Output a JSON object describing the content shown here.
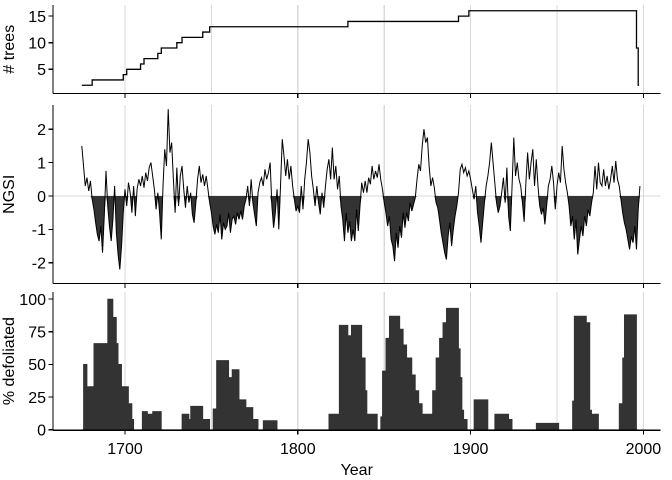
{
  "figure": {
    "description": "Three stacked time-series panels sharing a Year axis: tree sample depth, NGSI index with negative values filled dark, and percent defoliated.",
    "x_axis": {
      "label": "Year",
      "tick_labels": [
        1700,
        1800,
        1900,
        2000
      ],
      "gridline_years": [
        1700,
        1750,
        1800,
        1850,
        1900,
        1950,
        2000
      ],
      "domain": [
        1658,
        2010
      ]
    },
    "colors": {
      "line": "#000000",
      "fill": "#333333",
      "grid": "#d9d9d9",
      "axis": "#000000",
      "background": "#ffffff"
    }
  },
  "chart_data": [
    {
      "id": "trees",
      "type": "line",
      "subtype": "step-after",
      "ylabel": "# trees",
      "yticks": [
        5,
        10,
        15
      ],
      "ydomain": [
        0.5,
        17.1
      ],
      "steps": [
        [
          1675,
          2
        ],
        [
          1681,
          3
        ],
        [
          1699,
          4
        ],
        [
          1701,
          5
        ],
        [
          1709,
          6
        ],
        [
          1711,
          7
        ],
        [
          1719,
          8
        ],
        [
          1721,
          9
        ],
        [
          1730,
          10
        ],
        [
          1733,
          11
        ],
        [
          1745,
          12
        ],
        [
          1749,
          13
        ],
        [
          1829,
          14
        ],
        [
          1893,
          15
        ],
        [
          1899,
          16
        ],
        [
          1996,
          9
        ],
        [
          1997,
          2
        ]
      ],
      "end_year": 1997.5
    },
    {
      "id": "ngsi",
      "type": "line",
      "ylabel": "NGSI",
      "yticks": [
        -2,
        -1,
        0,
        1,
        2
      ],
      "ydomain": [
        -2.6,
        2.72
      ],
      "fill_below_zero": true,
      "zero_gridline": true,
      "start_year": 1675,
      "values": [
        1.5,
        0.9,
        0.3,
        0.55,
        0.15,
        0.45,
        -0.1,
        -0.4,
        -0.8,
        -1.15,
        -1.35,
        -0.9,
        -1.7,
        -0.6,
        0.75,
        -0.3,
        -0.9,
        -1.35,
        -0.7,
        0.3,
        -1.1,
        -1.75,
        -2.2,
        -1.5,
        -0.5,
        0.2,
        -0.3,
        0.4,
        0.1,
        -0.5,
        0.3,
        -0.6,
        0.2,
        0.5,
        0.3,
        0.6,
        0.25,
        0.7,
        0.45,
        0.85,
        1.0,
        0.6,
        0.2,
        -0.4,
        0.1,
        -0.5,
        -1.3,
        0.3,
        1.4,
        0.9,
        2.6,
        1.3,
        1.6,
        0.5,
        -0.5,
        0.85,
        -0.3,
        0.6,
        0.9,
        0.2,
        -0.35,
        0.3,
        -0.2,
        0.1,
        -0.55,
        -0.8,
        -0.2,
        0.5,
        0.9,
        0.4,
        0.65,
        0.3,
        0.6,
        0.2,
        -0.2,
        -0.5,
        -0.9,
        -1.15,
        -0.85,
        -1.1,
        -0.55,
        -1.3,
        -0.8,
        -1.0,
        -0.9,
        -0.5,
        -1.1,
        -0.7,
        -0.6,
        -0.85,
        -0.5,
        -0.7,
        -0.45,
        -0.7,
        -0.3,
        -0.1,
        0.3,
        -0.3,
        0.5,
        -0.2,
        -0.55,
        -0.9,
        0.1,
        0.4,
        0.55,
        0.3,
        0.8,
        0.5,
        0.7,
        1.0,
        -0.3,
        -0.95,
        -0.5,
        0.2,
        -1.0,
        0.3,
        1.7,
        1.2,
        0.6,
        1.1,
        0.5,
        0.9,
        0.3,
        -0.1,
        -0.45,
        -0.3,
        -0.5,
        0.3,
        -0.4,
        0.5,
        1.0,
        1.7,
        1.3,
        0.6,
        0.2,
        -0.3,
        0.3,
        -0.2,
        -0.55,
        0.1,
        -0.35,
        0.3,
        0.8,
        1.1,
        0.5,
        1.45,
        0.5,
        0.9,
        0.2,
        0.6,
        -0.3,
        -0.7,
        -1.35,
        -0.5,
        -1.1,
        -0.75,
        -1.35,
        -1.0,
        -1.35,
        -0.4,
        -1.05,
        -0.3,
        0.4,
        0.1,
        0.45,
        0.1,
        0.55,
        0.35,
        0.9,
        0.5,
        0.75,
        0.55,
        0.95,
        0.5,
        0.2,
        -0.2,
        -0.5,
        -0.9,
        -0.6,
        -1.3,
        -1.5,
        -1.95,
        -1.1,
        -1.55,
        -0.9,
        -1.25,
        -0.5,
        -0.95,
        -0.5,
        -0.75,
        -0.2,
        -0.45,
        -0.25,
        -0.05,
        0.5,
        0.95,
        0.75,
        1.5,
        2.0,
        1.6,
        1.75,
        0.9,
        0.3,
        0.55,
        0.25,
        -0.2,
        -0.35,
        -0.7,
        -1.1,
        -1.4,
        -1.7,
        -1.9,
        -1.2,
        -0.8,
        -1.5,
        -1.0,
        -0.6,
        -0.3,
        0.1,
        0.8,
        0.95,
        0.7,
        0.85,
        0.6,
        0.75,
        0.5,
        0.2,
        -0.1,
        0.3,
        -0.5,
        -0.9,
        -1.4,
        -0.8,
        -0.2,
        0.3,
        0.6,
        1.0,
        1.6,
        1.0,
        0.4,
        -0.2,
        -0.5,
        -0.3,
        0.1,
        0.55,
        -0.2,
        0.85,
        -0.6,
        -1.05,
        0.3,
        1.75,
        0.6,
        1.0,
        0.5,
        0.3,
        -0.2,
        -0.77,
        0.4,
        1.3,
        0.5,
        1.0,
        1.4,
        0.3,
        1.1,
        0.3,
        -0.3,
        -0.55,
        -0.35,
        -0.85,
        -0.3,
        0.3,
        0.5,
        0.9,
        0.4,
        -0.4,
        0.3,
        0.7,
        0.4,
        1.5,
        0.8,
        0.4,
        0.1,
        -0.3,
        -0.9,
        -0.6,
        -1.3,
        -0.7,
        -1.75,
        -1.3,
        -0.9,
        -1.2,
        -0.6,
        -0.9,
        -0.4,
        -0.6,
        -0.2,
        0.1,
        0.9,
        0.2,
        1.0,
        0.4,
        0.3,
        0.8,
        0.3,
        0.6,
        0.2,
        0.5,
        0.9,
        0.4,
        1.05,
        0.5,
        0.3,
        -0.1,
        -0.5,
        -0.8,
        -1.0,
        -1.3,
        -1.6,
        -1.2,
        -1.4,
        -0.9,
        -1.6,
        -0.4,
        0.3
      ]
    },
    {
      "id": "defoliation",
      "type": "area",
      "subtype": "step-after",
      "ylabel": "% defoliated",
      "yticks": [
        0,
        25,
        50,
        75,
        100
      ],
      "ydomain": [
        0,
        105
      ],
      "steps": [
        [
          1675,
          0
        ],
        [
          1676,
          50
        ],
        [
          1678,
          33
        ],
        [
          1682,
          66
        ],
        [
          1690,
          100
        ],
        [
          1693,
          86
        ],
        [
          1695,
          66
        ],
        [
          1696,
          50
        ],
        [
          1698,
          33
        ],
        [
          1702,
          20
        ],
        [
          1704,
          8
        ],
        [
          1705,
          0
        ],
        [
          1710,
          14
        ],
        [
          1713,
          12
        ],
        [
          1716,
          14
        ],
        [
          1721,
          0
        ],
        [
          1733,
          12
        ],
        [
          1737,
          8
        ],
        [
          1738,
          18
        ],
        [
          1745,
          8
        ],
        [
          1749,
          0
        ],
        [
          1751,
          16
        ],
        [
          1753,
          53
        ],
        [
          1760,
          40
        ],
        [
          1762,
          46
        ],
        [
          1766,
          23
        ],
        [
          1770,
          17
        ],
        [
          1774,
          8
        ],
        [
          1777,
          0
        ],
        [
          1780,
          7
        ],
        [
          1788,
          0
        ],
        [
          1818,
          12
        ],
        [
          1824,
          80
        ],
        [
          1829,
          72
        ],
        [
          1831,
          80
        ],
        [
          1837,
          55
        ],
        [
          1839,
          30
        ],
        [
          1840,
          12
        ],
        [
          1846,
          0
        ],
        [
          1848,
          10
        ],
        [
          1849,
          45
        ],
        [
          1851,
          70
        ],
        [
          1853,
          87
        ],
        [
          1859,
          77
        ],
        [
          1861,
          65
        ],
        [
          1863,
          55
        ],
        [
          1866,
          42
        ],
        [
          1868,
          30
        ],
        [
          1870,
          20
        ],
        [
          1872,
          12
        ],
        [
          1878,
          30
        ],
        [
          1880,
          55
        ],
        [
          1882,
          70
        ],
        [
          1884,
          82
        ],
        [
          1886,
          93
        ],
        [
          1893,
          62
        ],
        [
          1894,
          40
        ],
        [
          1895,
          15
        ],
        [
          1896,
          8
        ],
        [
          1898,
          0
        ],
        [
          1902,
          23
        ],
        [
          1910,
          0
        ],
        [
          1914,
          12
        ],
        [
          1922,
          8
        ],
        [
          1924,
          0
        ],
        [
          1938,
          5
        ],
        [
          1951,
          0
        ],
        [
          1959,
          22
        ],
        [
          1960,
          87
        ],
        [
          1967,
          82
        ],
        [
          1969,
          15
        ],
        [
          1970,
          12
        ],
        [
          1974,
          0
        ],
        [
          1986,
          20
        ],
        [
          1988,
          55
        ],
        [
          1989,
          88
        ],
        [
          1996,
          0
        ]
      ],
      "end_year": 1997
    }
  ]
}
